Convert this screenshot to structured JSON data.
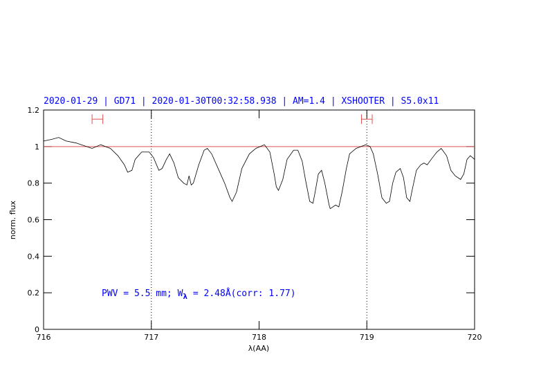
{
  "chart_data": {
    "type": "line",
    "title": "2020-01-29 | GD71 | 2020-01-30T00:32:58.938 | AM=1.4 | XSHOOTER | S5.0x11",
    "x_label": "λ(AA)",
    "y_label": "norm. flux",
    "annotation": {
      "text": "PWV = 5.5 mm; W",
      "subscript": "λ",
      "rest": " = 2.48Å(corr: 1.77)"
    },
    "color": "#000000",
    "text_color": "#0000ff",
    "xlim": [
      716,
      720
    ],
    "ylim": [
      0,
      1.2
    ],
    "xticks": [
      716,
      717,
      718,
      719,
      720
    ],
    "yticks": [
      0,
      0.2,
      0.4,
      0.6,
      0.8,
      1,
      1.2
    ],
    "reference_line": {
      "value": 1,
      "color": "#e05050"
    },
    "vlines": [
      717,
      719
    ],
    "intervals": [
      {
        "x": [
          716.45,
          716.55
        ],
        "y": 1.15
      },
      {
        "x": [
          718.95,
          719.05
        ],
        "y": 1.15
      }
    ],
    "x": [
      716.0,
      716.08,
      716.14,
      716.21,
      716.3,
      716.4,
      716.45,
      716.53,
      716.62,
      716.69,
      716.75,
      716.78,
      716.82,
      716.85,
      716.91,
      716.98,
      717.02,
      717.07,
      717.1,
      717.14,
      717.17,
      717.21,
      717.25,
      717.3,
      717.33,
      717.35,
      717.37,
      717.39,
      717.44,
      717.49,
      717.52,
      717.56,
      717.62,
      717.68,
      717.73,
      717.75,
      717.79,
      717.84,
      717.91,
      717.97,
      718.05,
      718.1,
      718.14,
      718.16,
      718.18,
      718.22,
      718.26,
      718.32,
      718.36,
      718.4,
      718.43,
      718.47,
      718.5,
      718.52,
      718.55,
      718.58,
      718.61,
      718.65,
      718.66,
      718.71,
      718.74,
      718.77,
      718.81,
      718.84,
      718.9,
      718.99,
      719.03,
      719.06,
      719.1,
      719.14,
      719.18,
      719.21,
      719.24,
      719.27,
      719.31,
      719.34,
      719.37,
      719.4,
      719.42,
      719.46,
      719.5,
      719.53,
      719.56,
      719.61,
      719.65,
      719.69,
      719.74,
      719.78,
      719.82,
      719.87,
      719.9,
      719.93,
      719.96,
      720.0
    ],
    "values": [
      1.03,
      1.04,
      1.05,
      1.03,
      1.02,
      1.0,
      0.99,
      1.01,
      0.99,
      0.95,
      0.9,
      0.86,
      0.87,
      0.93,
      0.97,
      0.97,
      0.94,
      0.87,
      0.88,
      0.93,
      0.96,
      0.91,
      0.83,
      0.8,
      0.79,
      0.84,
      0.79,
      0.8,
      0.9,
      0.98,
      0.99,
      0.96,
      0.88,
      0.8,
      0.72,
      0.7,
      0.75,
      0.88,
      0.96,
      0.99,
      1.01,
      0.97,
      0.85,
      0.78,
      0.76,
      0.82,
      0.93,
      0.98,
      0.98,
      0.92,
      0.82,
      0.7,
      0.69,
      0.75,
      0.85,
      0.87,
      0.8,
      0.68,
      0.66,
      0.68,
      0.67,
      0.75,
      0.88,
      0.96,
      0.99,
      1.01,
      1.0,
      0.96,
      0.85,
      0.72,
      0.69,
      0.7,
      0.8,
      0.86,
      0.88,
      0.83,
      0.72,
      0.7,
      0.76,
      0.87,
      0.9,
      0.91,
      0.9,
      0.94,
      0.97,
      0.99,
      0.95,
      0.87,
      0.84,
      0.82,
      0.85,
      0.93,
      0.95,
      0.93
    ]
  }
}
